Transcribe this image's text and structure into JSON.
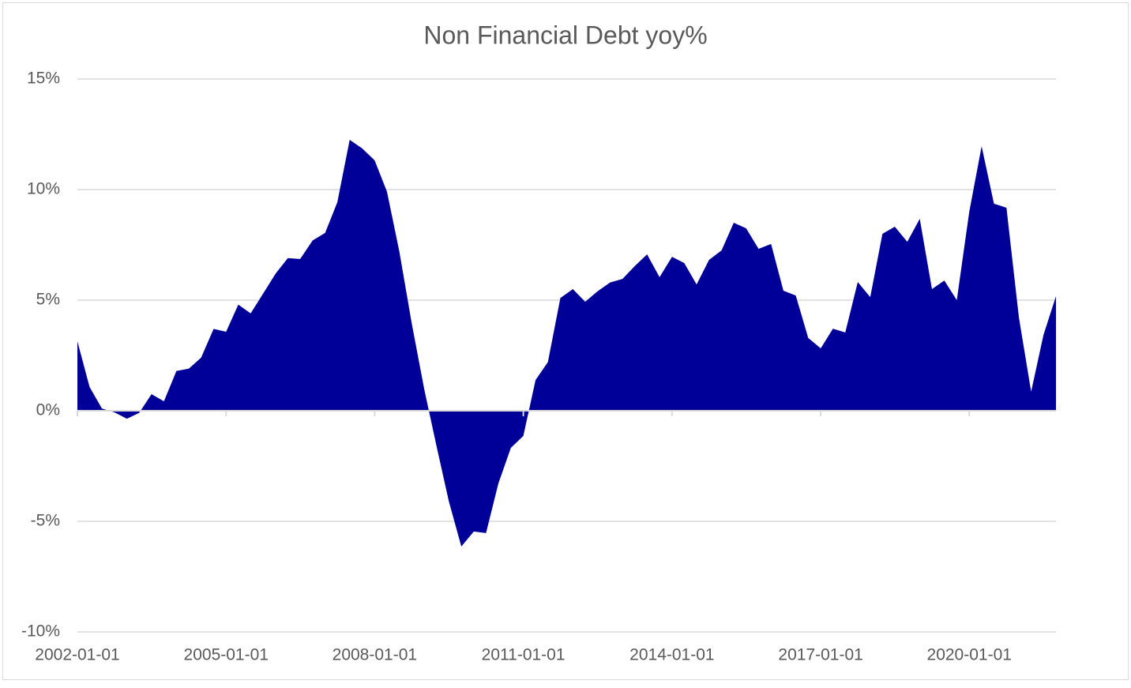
{
  "chart_data": {
    "type": "area",
    "title": "Non Financial Debt yoy%",
    "color": "#000099",
    "grid": true,
    "x": [
      "2002-01-01",
      "2002-04-01",
      "2002-07-01",
      "2002-10-01",
      "2003-01-01",
      "2003-04-01",
      "2003-07-01",
      "2003-10-01",
      "2004-01-01",
      "2004-04-01",
      "2004-07-01",
      "2004-10-01",
      "2005-01-01",
      "2005-04-01",
      "2005-07-01",
      "2005-10-01",
      "2006-01-01",
      "2006-04-01",
      "2006-07-01",
      "2006-10-01",
      "2007-01-01",
      "2007-04-01",
      "2007-07-01",
      "2007-10-01",
      "2008-01-01",
      "2008-04-01",
      "2008-07-01",
      "2008-10-01",
      "2009-01-01",
      "2009-04-01",
      "2009-07-01",
      "2009-10-01",
      "2010-01-01",
      "2010-04-01",
      "2010-07-01",
      "2010-10-01",
      "2011-01-01",
      "2011-04-01",
      "2011-07-01",
      "2011-10-01",
      "2012-01-01",
      "2012-04-01",
      "2012-07-01",
      "2012-10-01",
      "2013-01-01",
      "2013-04-01",
      "2013-07-01",
      "2013-10-01",
      "2014-01-01",
      "2014-04-01",
      "2014-07-01",
      "2014-10-01",
      "2015-01-01",
      "2015-04-01",
      "2015-07-01",
      "2015-10-01",
      "2016-01-01",
      "2016-04-01",
      "2016-07-01",
      "2016-10-01",
      "2017-01-01",
      "2017-04-01",
      "2017-07-01",
      "2017-10-01",
      "2018-01-01",
      "2018-04-01",
      "2018-07-01",
      "2018-10-01",
      "2019-01-01",
      "2019-04-01",
      "2019-07-01",
      "2019-10-01",
      "2020-01-01",
      "2020-04-01",
      "2020-07-01",
      "2020-10-01",
      "2021-01-01",
      "2021-04-01",
      "2021-07-01",
      "2021-10-01"
    ],
    "values": [
      3.14,
      1.07,
      0.1,
      -0.07,
      -0.36,
      -0.1,
      0.75,
      0.43,
      1.8,
      1.9,
      2.4,
      3.7,
      3.57,
      4.8,
      4.4,
      5.3,
      6.2,
      6.9,
      6.86,
      7.7,
      8.04,
      9.43,
      12.25,
      11.86,
      11.32,
      9.9,
      7.2,
      3.93,
      0.96,
      -1.6,
      -4.1,
      -6.14,
      -5.46,
      -5.53,
      -3.29,
      -1.68,
      -1.14,
      1.39,
      2.2,
      5.1,
      5.5,
      4.93,
      5.4,
      5.8,
      5.96,
      6.54,
      7.07,
      6.04,
      6.96,
      6.68,
      5.71,
      6.82,
      7.25,
      8.5,
      8.25,
      7.32,
      7.54,
      5.43,
      5.21,
      3.29,
      2.82,
      3.71,
      3.54,
      5.82,
      5.14,
      8.0,
      8.32,
      7.64,
      8.68,
      5.5,
      5.89,
      5.0,
      9.0,
      11.96,
      9.36,
      9.18,
      4.21,
      0.86,
      3.43,
      5.18
    ],
    "xlim": [
      "2002-01-01",
      "2021-10-01"
    ],
    "xticks": [
      "2002-01-01",
      "2005-01-01",
      "2008-01-01",
      "2011-01-01",
      "2014-01-01",
      "2017-01-01",
      "2020-01-01"
    ],
    "ylim": [
      -10,
      15
    ],
    "yticks": [
      {
        "value": -10,
        "label": "-10%"
      },
      {
        "value": -5,
        "label": "-5%"
      },
      {
        "value": 0,
        "label": "0%"
      },
      {
        "value": 5,
        "label": "5%"
      },
      {
        "value": 10,
        "label": "10%"
      },
      {
        "value": 15,
        "label": "15%"
      }
    ]
  }
}
